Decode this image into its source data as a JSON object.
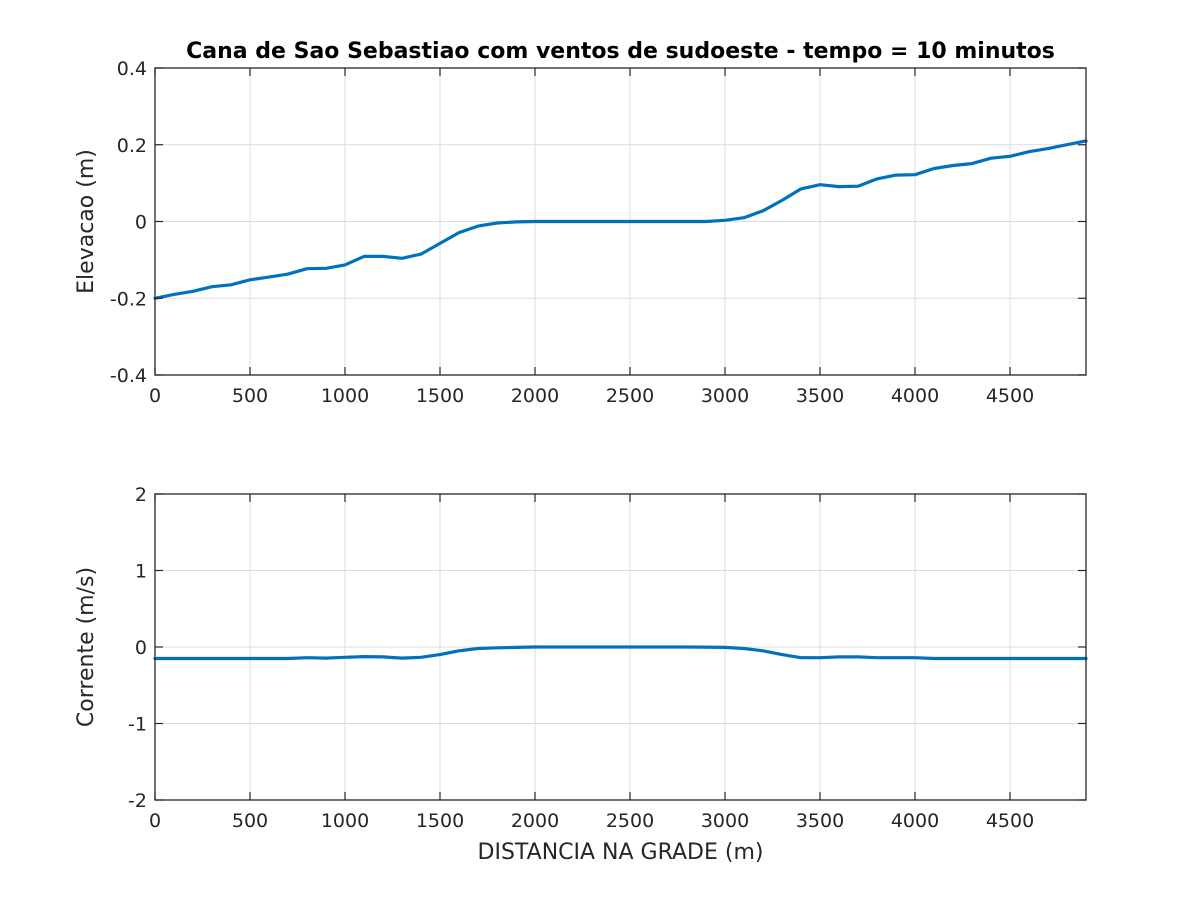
{
  "colors": {
    "series": "#0072BD",
    "axis": "#262626",
    "grid": "#dcdcdc"
  },
  "chart_data": [
    {
      "type": "line",
      "title": "Cana de Sao Sebastiao com ventos de sudoeste - tempo = 10 minutos",
      "xlabel": "",
      "ylabel": "Elevacao (m)",
      "xlim": [
        0,
        4900
      ],
      "ylim": [
        -0.4,
        0.4
      ],
      "grid": true,
      "xticks": [
        0,
        500,
        1000,
        1500,
        2000,
        2500,
        3000,
        3500,
        4000,
        4500
      ],
      "xtick_labels": [
        "0",
        "500",
        "1000",
        "1500",
        "2000",
        "2500",
        "3000",
        "3500",
        "4000",
        "4500"
      ],
      "yticks": [
        -0.4,
        -0.2,
        0,
        0.2,
        0.4
      ],
      "ytick_labels": [
        "-0.4",
        "-0.2",
        "0",
        "0.2",
        "0.4"
      ],
      "series": [
        {
          "x": [
            0,
            100,
            200,
            300,
            400,
            500,
            600,
            700,
            800,
            900,
            1000,
            1100,
            1200,
            1300,
            1400,
            1500,
            1600,
            1700,
            1800,
            1900,
            2000,
            2500,
            2800,
            2900,
            3000,
            3100,
            3200,
            3300,
            3400,
            3500,
            3600,
            3700,
            3800,
            3900,
            4000,
            4100,
            4200,
            4300,
            4400,
            4500,
            4600,
            4700,
            4800,
            4900
          ],
          "values": [
            -0.2,
            -0.19,
            -0.182,
            -0.17,
            -0.165,
            -0.152,
            -0.145,
            -0.137,
            -0.123,
            -0.122,
            -0.113,
            -0.091,
            -0.091,
            -0.096,
            -0.085,
            -0.057,
            -0.029,
            -0.012,
            -0.004,
            -0.001,
            0.0,
            0.0,
            0.0,
            0.0,
            0.003,
            0.01,
            0.028,
            0.055,
            0.085,
            0.096,
            0.091,
            0.092,
            0.111,
            0.121,
            0.122,
            0.138,
            0.146,
            0.151,
            0.165,
            0.17,
            0.182,
            0.19,
            0.2,
            0.21
          ]
        }
      ]
    },
    {
      "type": "line",
      "title": "",
      "xlabel": "DISTANCIA NA GRADE (m)",
      "ylabel": "Corrente (m/s)",
      "xlim": [
        0,
        4900
      ],
      "ylim": [
        -2,
        2
      ],
      "grid": true,
      "xticks": [
        0,
        500,
        1000,
        1500,
        2000,
        2500,
        3000,
        3500,
        4000,
        4500
      ],
      "xtick_labels": [
        "0",
        "500",
        "1000",
        "1500",
        "2000",
        "2500",
        "3000",
        "3500",
        "4000",
        "4500"
      ],
      "yticks": [
        -2,
        -1,
        0,
        1,
        2
      ],
      "ytick_labels": [
        "-2",
        "-1",
        "0",
        "1",
        "2"
      ],
      "series": [
        {
          "x": [
            0,
            700,
            800,
            900,
            1000,
            1100,
            1200,
            1300,
            1400,
            1500,
            1600,
            1700,
            1800,
            1900,
            2000,
            2800,
            3000,
            3100,
            3200,
            3300,
            3400,
            3500,
            3600,
            3700,
            3800,
            3900,
            4000,
            4100,
            4900
          ],
          "values": [
            -0.15,
            -0.15,
            -0.14,
            -0.145,
            -0.135,
            -0.125,
            -0.13,
            -0.145,
            -0.135,
            -0.1,
            -0.05,
            -0.02,
            -0.01,
            -0.005,
            0.0,
            0.0,
            -0.005,
            -0.02,
            -0.05,
            -0.1,
            -0.14,
            -0.14,
            -0.13,
            -0.13,
            -0.14,
            -0.14,
            -0.14,
            -0.15,
            -0.15
          ]
        }
      ]
    }
  ]
}
